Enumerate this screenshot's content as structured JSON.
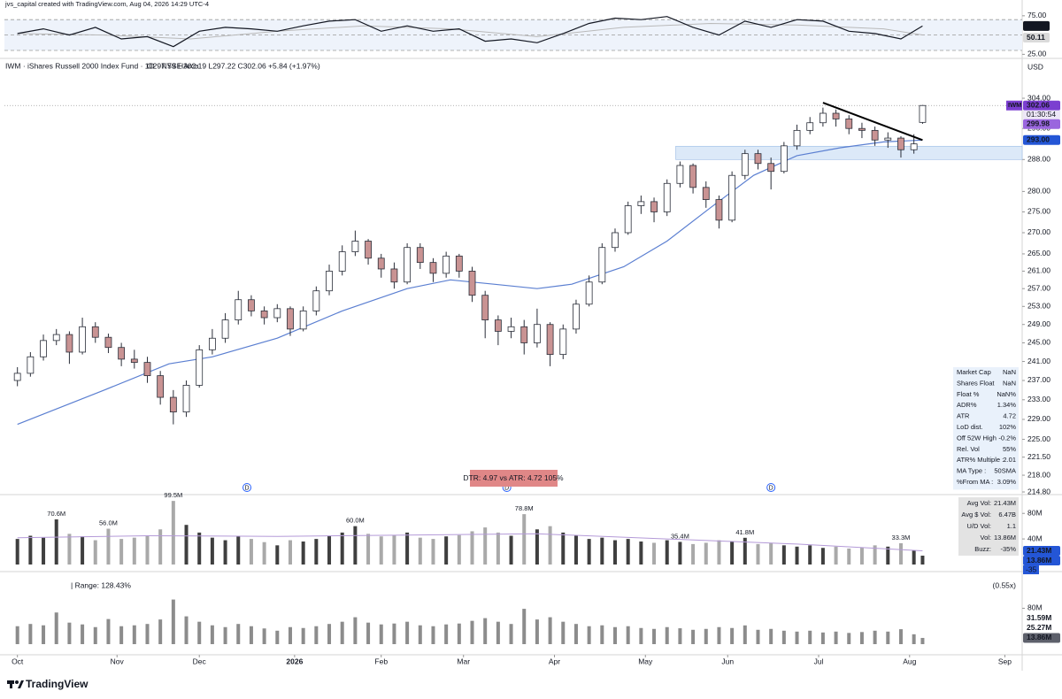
{
  "chart_data": {
    "type": "candlestick",
    "watermark": "jvs_capital created with TradingView.com, Aug 04, 2026 14:29 UTC-4",
    "title": "IWM · iShares Russell 2000 Index Fund · 1D · NYSE Arca",
    "legend_ohlc": "O297.59 H302.19 L297.22 C302.06 +5.84 (+1.97%)",
    "currency": "USD",
    "branding": "TradingView",
    "log_scale": true,
    "xlim": [
      -3,
      232
    ],
    "xticks": [
      {
        "value": 0,
        "label": "Oct"
      },
      {
        "value": 23,
        "label": "Nov"
      },
      {
        "value": 42,
        "label": "Dec"
      },
      {
        "value": 64,
        "label": "2026",
        "bold": true
      },
      {
        "value": 84,
        "label": "Feb"
      },
      {
        "value": 103,
        "label": "Mar"
      },
      {
        "value": 124,
        "label": "Apr"
      },
      {
        "value": 145,
        "label": "May"
      },
      {
        "value": 164,
        "label": "Jun"
      },
      {
        "value": 185,
        "label": "Jul"
      },
      {
        "value": 206,
        "label": "Aug"
      },
      {
        "value": 228,
        "label": "Sep"
      }
    ],
    "ylim": [
      214.8,
      310
    ],
    "yticks": [
      {
        "value": 304,
        "label": "304.00"
      },
      {
        "value": 296,
        "label": "296.00"
      },
      {
        "value": 288,
        "label": "288.00"
      },
      {
        "value": 280,
        "label": "280.00"
      },
      {
        "value": 275,
        "label": "275.00"
      },
      {
        "value": 270,
        "label": "270.00"
      },
      {
        "value": 265,
        "label": "265.00"
      },
      {
        "value": 261,
        "label": "261.00"
      },
      {
        "value": 257,
        "label": "257.00"
      },
      {
        "value": 253,
        "label": "253.00"
      },
      {
        "value": 249,
        "label": "249.00"
      },
      {
        "value": 245,
        "label": "245.00"
      },
      {
        "value": 241,
        "label": "241.00"
      },
      {
        "value": 237,
        "label": "237.00"
      },
      {
        "value": 233,
        "label": "233.00"
      },
      {
        "value": 229,
        "label": "229.00"
      },
      {
        "value": 225,
        "label": "225.00"
      },
      {
        "value": 221.5,
        "label": "221.50"
      },
      {
        "value": 218,
        "label": "218.00"
      },
      {
        "value": 214.8,
        "label": "214.80"
      }
    ],
    "up_color": "#ffffff",
    "down_color": "#c99393",
    "x": [
      0,
      3,
      6,
      9,
      12,
      15,
      18,
      21,
      24,
      27,
      30,
      33,
      36,
      39,
      42,
      45,
      48,
      51,
      54,
      57,
      60,
      63,
      66,
      69,
      72,
      75,
      78,
      81,
      84,
      87,
      90,
      93,
      96,
      99,
      102,
      105,
      108,
      111,
      114,
      117,
      120,
      123,
      126,
      129,
      132,
      135,
      138,
      141,
      144,
      147,
      150,
      153,
      156,
      159,
      162,
      165,
      168,
      171,
      174,
      177,
      180,
      183,
      186,
      189,
      192,
      195,
      198,
      201,
      204,
      207,
      209
    ],
    "open": [
      237.0,
      238.5,
      242.0,
      245.5,
      246.8,
      243.0,
      248.5,
      246.2,
      244.0,
      241.5,
      240.8,
      238.0,
      233.5,
      230.5,
      236.0,
      243.5,
      246.0,
      250.0,
      254.5,
      252.0,
      250.5,
      252.5,
      248.0,
      252.0,
      256.5,
      261.0,
      265.5,
      268.0,
      264.0,
      261.5,
      258.5,
      266.5,
      263.0,
      260.5,
      264.5,
      261.0,
      255.5,
      250.0,
      247.5,
      248.5,
      245.0,
      249.0,
      242.5,
      248.0,
      253.5,
      258.5,
      266.5,
      270.0,
      276.5,
      277.5,
      275.0,
      282.0,
      286.5,
      281.0,
      278.0,
      273.0,
      284.0,
      289.5,
      287.0,
      285.0,
      291.5,
      295.5,
      297.5,
      300.0,
      298.5,
      296.0,
      295.5,
      293.0,
      293.5,
      290.5,
      297.59
    ],
    "high": [
      239.8,
      243.0,
      246.8,
      248.0,
      247.5,
      250.5,
      249.5,
      247.0,
      245.0,
      243.5,
      242.0,
      239.0,
      235.0,
      237.0,
      244.5,
      248.0,
      251.5,
      256.5,
      255.5,
      253.0,
      253.5,
      253.0,
      253.0,
      257.5,
      262.5,
      267.0,
      270.5,
      268.5,
      265.0,
      263.0,
      267.5,
      267.5,
      264.0,
      265.5,
      265.0,
      262.0,
      256.5,
      251.0,
      250.5,
      250.0,
      252.5,
      249.5,
      249.0,
      254.5,
      260.0,
      267.5,
      271.0,
      277.5,
      279.0,
      278.5,
      283.0,
      287.5,
      287.0,
      282.5,
      279.0,
      285.0,
      290.5,
      290.5,
      288.5,
      292.5,
      297.0,
      299.0,
      301.5,
      301.0,
      299.5,
      297.5,
      296.5,
      295.0,
      294.0,
      294.5,
      302.19
    ],
    "low": [
      235.8,
      237.8,
      241.2,
      244.5,
      240.5,
      242.5,
      245.0,
      242.8,
      240.0,
      239.5,
      236.5,
      232.0,
      228.0,
      229.5,
      235.5,
      242.5,
      245.0,
      249.0,
      250.8,
      249.0,
      249.5,
      246.5,
      247.5,
      251.0,
      255.5,
      260.0,
      264.5,
      262.5,
      259.5,
      257.0,
      258.0,
      261.5,
      258.5,
      259.5,
      259.5,
      254.0,
      246.0,
      244.5,
      246.0,
      242.5,
      244.0,
      240.0,
      241.5,
      247.0,
      253.0,
      258.0,
      265.5,
      269.5,
      274.5,
      272.5,
      274.0,
      281.0,
      279.5,
      276.0,
      271.0,
      272.5,
      283.0,
      285.5,
      280.5,
      284.5,
      290.5,
      294.5,
      296.5,
      296.5,
      294.5,
      293.5,
      291.5,
      291.0,
      288.5,
      289.5,
      297.22
    ],
    "close": [
      238.5,
      242.0,
      245.5,
      246.8,
      243.0,
      248.5,
      246.2,
      244.0,
      241.5,
      240.8,
      238.0,
      233.5,
      230.5,
      236.0,
      243.5,
      246.0,
      250.0,
      254.5,
      252.0,
      250.5,
      252.5,
      248.0,
      252.0,
      256.5,
      261.0,
      265.5,
      268.0,
      264.0,
      261.5,
      258.5,
      266.5,
      263.0,
      260.5,
      264.5,
      261.0,
      255.5,
      250.0,
      247.5,
      248.5,
      245.0,
      249.0,
      242.5,
      248.0,
      253.5,
      258.5,
      266.5,
      270.0,
      276.5,
      277.5,
      275.0,
      282.0,
      286.5,
      281.0,
      278.0,
      273.0,
      284.0,
      289.5,
      287.0,
      285.0,
      291.5,
      295.5,
      297.5,
      300.0,
      298.5,
      296.0,
      295.5,
      293.0,
      293.5,
      290.5,
      292.0,
      302.06
    ],
    "ma": {
      "color": "#5b7fd1",
      "x": [
        0,
        20,
        35,
        45,
        60,
        75,
        90,
        100,
        110,
        120,
        128,
        140,
        150,
        160,
        170,
        180,
        190,
        200,
        209
      ],
      "values": [
        228,
        235,
        240.5,
        242,
        246,
        252,
        257,
        259,
        258,
        257,
        258,
        262,
        268,
        276,
        284,
        289,
        291,
        292.5,
        293.0
      ]
    },
    "trendline": {
      "color": "#000000",
      "x": [
        186,
        209
      ],
      "values": [
        302.8,
        293.0
      ]
    },
    "support_zone": {
      "color": "#dce9f8",
      "x": 152,
      "low": 288.0,
      "high": 291.4
    },
    "symbol_tag": "IWM",
    "countdown": "01:30:54",
    "price_badges": [
      {
        "value": 302.06,
        "label": "302.06",
        "color": "#7b3fd0"
      },
      {
        "value": 299.98,
        "label": "299.98",
        "color": "#9a66de"
      },
      {
        "value": 293.0,
        "label": "293.00",
        "color": "#2456d6"
      }
    ],
    "dividends": {
      "label": "D",
      "x": [
        53,
        113,
        174
      ]
    },
    "dtr_label": "DTR: 4.97 vs ATR: 4.72 105%",
    "stats": [
      [
        "Market Cap",
        "NaN"
      ],
      [
        "Shares Float",
        "NaN"
      ],
      [
        "Float %",
        "NaN%"
      ],
      [
        "ADR%",
        "1.34%"
      ],
      [
        "ATR",
        "4.72"
      ],
      [
        "LoD dist.",
        "102%"
      ],
      [
        "Off 52W High",
        "-0.2%"
      ],
      [
        "Rel. Vol",
        "55%"
      ],
      [
        "ATR% Multiple :",
        "2.01"
      ],
      [
        "MA Type :",
        "50SMA"
      ],
      [
        "%From MA :",
        "3.09%"
      ]
    ],
    "rsi": {
      "ylim": [
        22,
        84
      ],
      "yticks": [
        {
          "value": 75,
          "label": "75.00"
        },
        {
          "value": 25,
          "label": "25.00"
        }
      ],
      "levels": [
        70,
        50,
        30
      ],
      "x": [
        0,
        6,
        12,
        18,
        24,
        30,
        36,
        42,
        48,
        54,
        60,
        66,
        72,
        78,
        84,
        90,
        96,
        102,
        108,
        114,
        120,
        126,
        132,
        138,
        144,
        150,
        156,
        162,
        168,
        174,
        180,
        186,
        192,
        198,
        204,
        209
      ],
      "values": [
        52,
        58,
        50,
        60,
        45,
        48,
        35,
        55,
        60,
        58,
        55,
        62,
        68,
        70,
        55,
        62,
        55,
        58,
        42,
        45,
        40,
        52,
        65,
        72,
        70,
        74,
        60,
        50,
        68,
        60,
        70,
        68,
        55,
        52,
        45,
        61.74
      ],
      "signal": {
        "x": [
          0,
          20,
          40,
          60,
          80,
          100,
          120,
          140,
          160,
          180,
          200,
          209
        ],
        "values": [
          52,
          50,
          45,
          55,
          62,
          58,
          48,
          60,
          65,
          63,
          58,
          50.11
        ]
      },
      "badges": [
        {
          "value": 61.74,
          "label": "61.74",
          "color": "#131722"
        },
        {
          "value": 50.11,
          "label": "50.11",
          "color": "#dadada"
        }
      ]
    },
    "volume": {
      "ylim": [
        0,
        108
      ],
      "yticks": [
        {
          "value": 40,
          "label": "40M"
        },
        {
          "value": 80,
          "label": "80M"
        }
      ],
      "values": [
        40,
        45,
        42,
        70.6,
        48,
        44,
        38,
        56.0,
        40,
        42,
        45,
        55,
        99.5,
        62,
        50,
        42,
        38,
        45,
        40,
        35,
        30,
        38,
        36,
        40,
        45,
        50,
        60.0,
        48,
        44,
        46,
        50,
        42,
        40,
        44,
        46,
        52,
        58,
        50,
        45,
        78.8,
        55,
        60,
        50,
        45,
        40,
        42,
        38,
        40,
        36,
        34,
        38,
        35.4,
        32,
        34,
        38,
        36,
        41.8,
        32,
        34,
        30,
        28,
        30,
        26,
        28,
        25,
        27,
        30,
        28,
        33.3,
        22,
        13.86
      ],
      "value_labels": [
        null,
        null,
        null,
        "70.6M",
        null,
        null,
        null,
        "56.0M",
        null,
        null,
        null,
        null,
        "99.5M",
        null,
        null,
        null,
        null,
        null,
        null,
        null,
        null,
        null,
        null,
        null,
        null,
        null,
        "60.0M",
        null,
        null,
        null,
        null,
        null,
        null,
        null,
        null,
        null,
        null,
        null,
        null,
        "78.8M",
        null,
        null,
        null,
        null,
        null,
        null,
        null,
        null,
        null,
        null,
        null,
        "35.4M",
        null,
        null,
        null,
        null,
        "41.8M",
        null,
        null,
        null,
        null,
        null,
        null,
        null,
        null,
        null,
        null,
        null,
        "33.3M",
        null,
        null
      ],
      "ma": {
        "color": "#b49ad8",
        "x": [
          0,
          30,
          60,
          90,
          120,
          150,
          180,
          209
        ],
        "values": [
          42,
          45,
          44,
          46,
          48,
          40,
          32,
          21.43
        ]
      },
      "badges": [
        {
          "value": 21.43,
          "label": "21.43M",
          "color": "#2456d6"
        },
        {
          "value": 13.86,
          "label": "13.86M",
          "color": "#2456d6"
        }
      ],
      "buzz_tag": "-35",
      "stats": [
        [
          "Avg Vol:",
          "21.43M"
        ],
        [
          "Avg $ Vol:",
          "6.47B"
        ],
        [
          "U/D Vol:",
          "1.1"
        ],
        [
          "Vol:",
          "13.86M"
        ],
        [
          "Buzz:",
          "-35%"
        ]
      ]
    },
    "range_pane": {
      "title": "| Range: 128.43%",
      "ratio": "(0.55x)",
      "ylim": [
        0,
        150
      ],
      "yticks": [
        {
          "value": 80,
          "label": "80M"
        }
      ],
      "badges": [
        {
          "value": 31.59,
          "label": "31.59M",
          "color": "#ffffff"
        },
        {
          "value": 25.27,
          "label": "25.27M",
          "color": "#ffffff"
        },
        {
          "value": 13.86,
          "label": "13.86M",
          "color": "#5d606b"
        }
      ]
    }
  }
}
